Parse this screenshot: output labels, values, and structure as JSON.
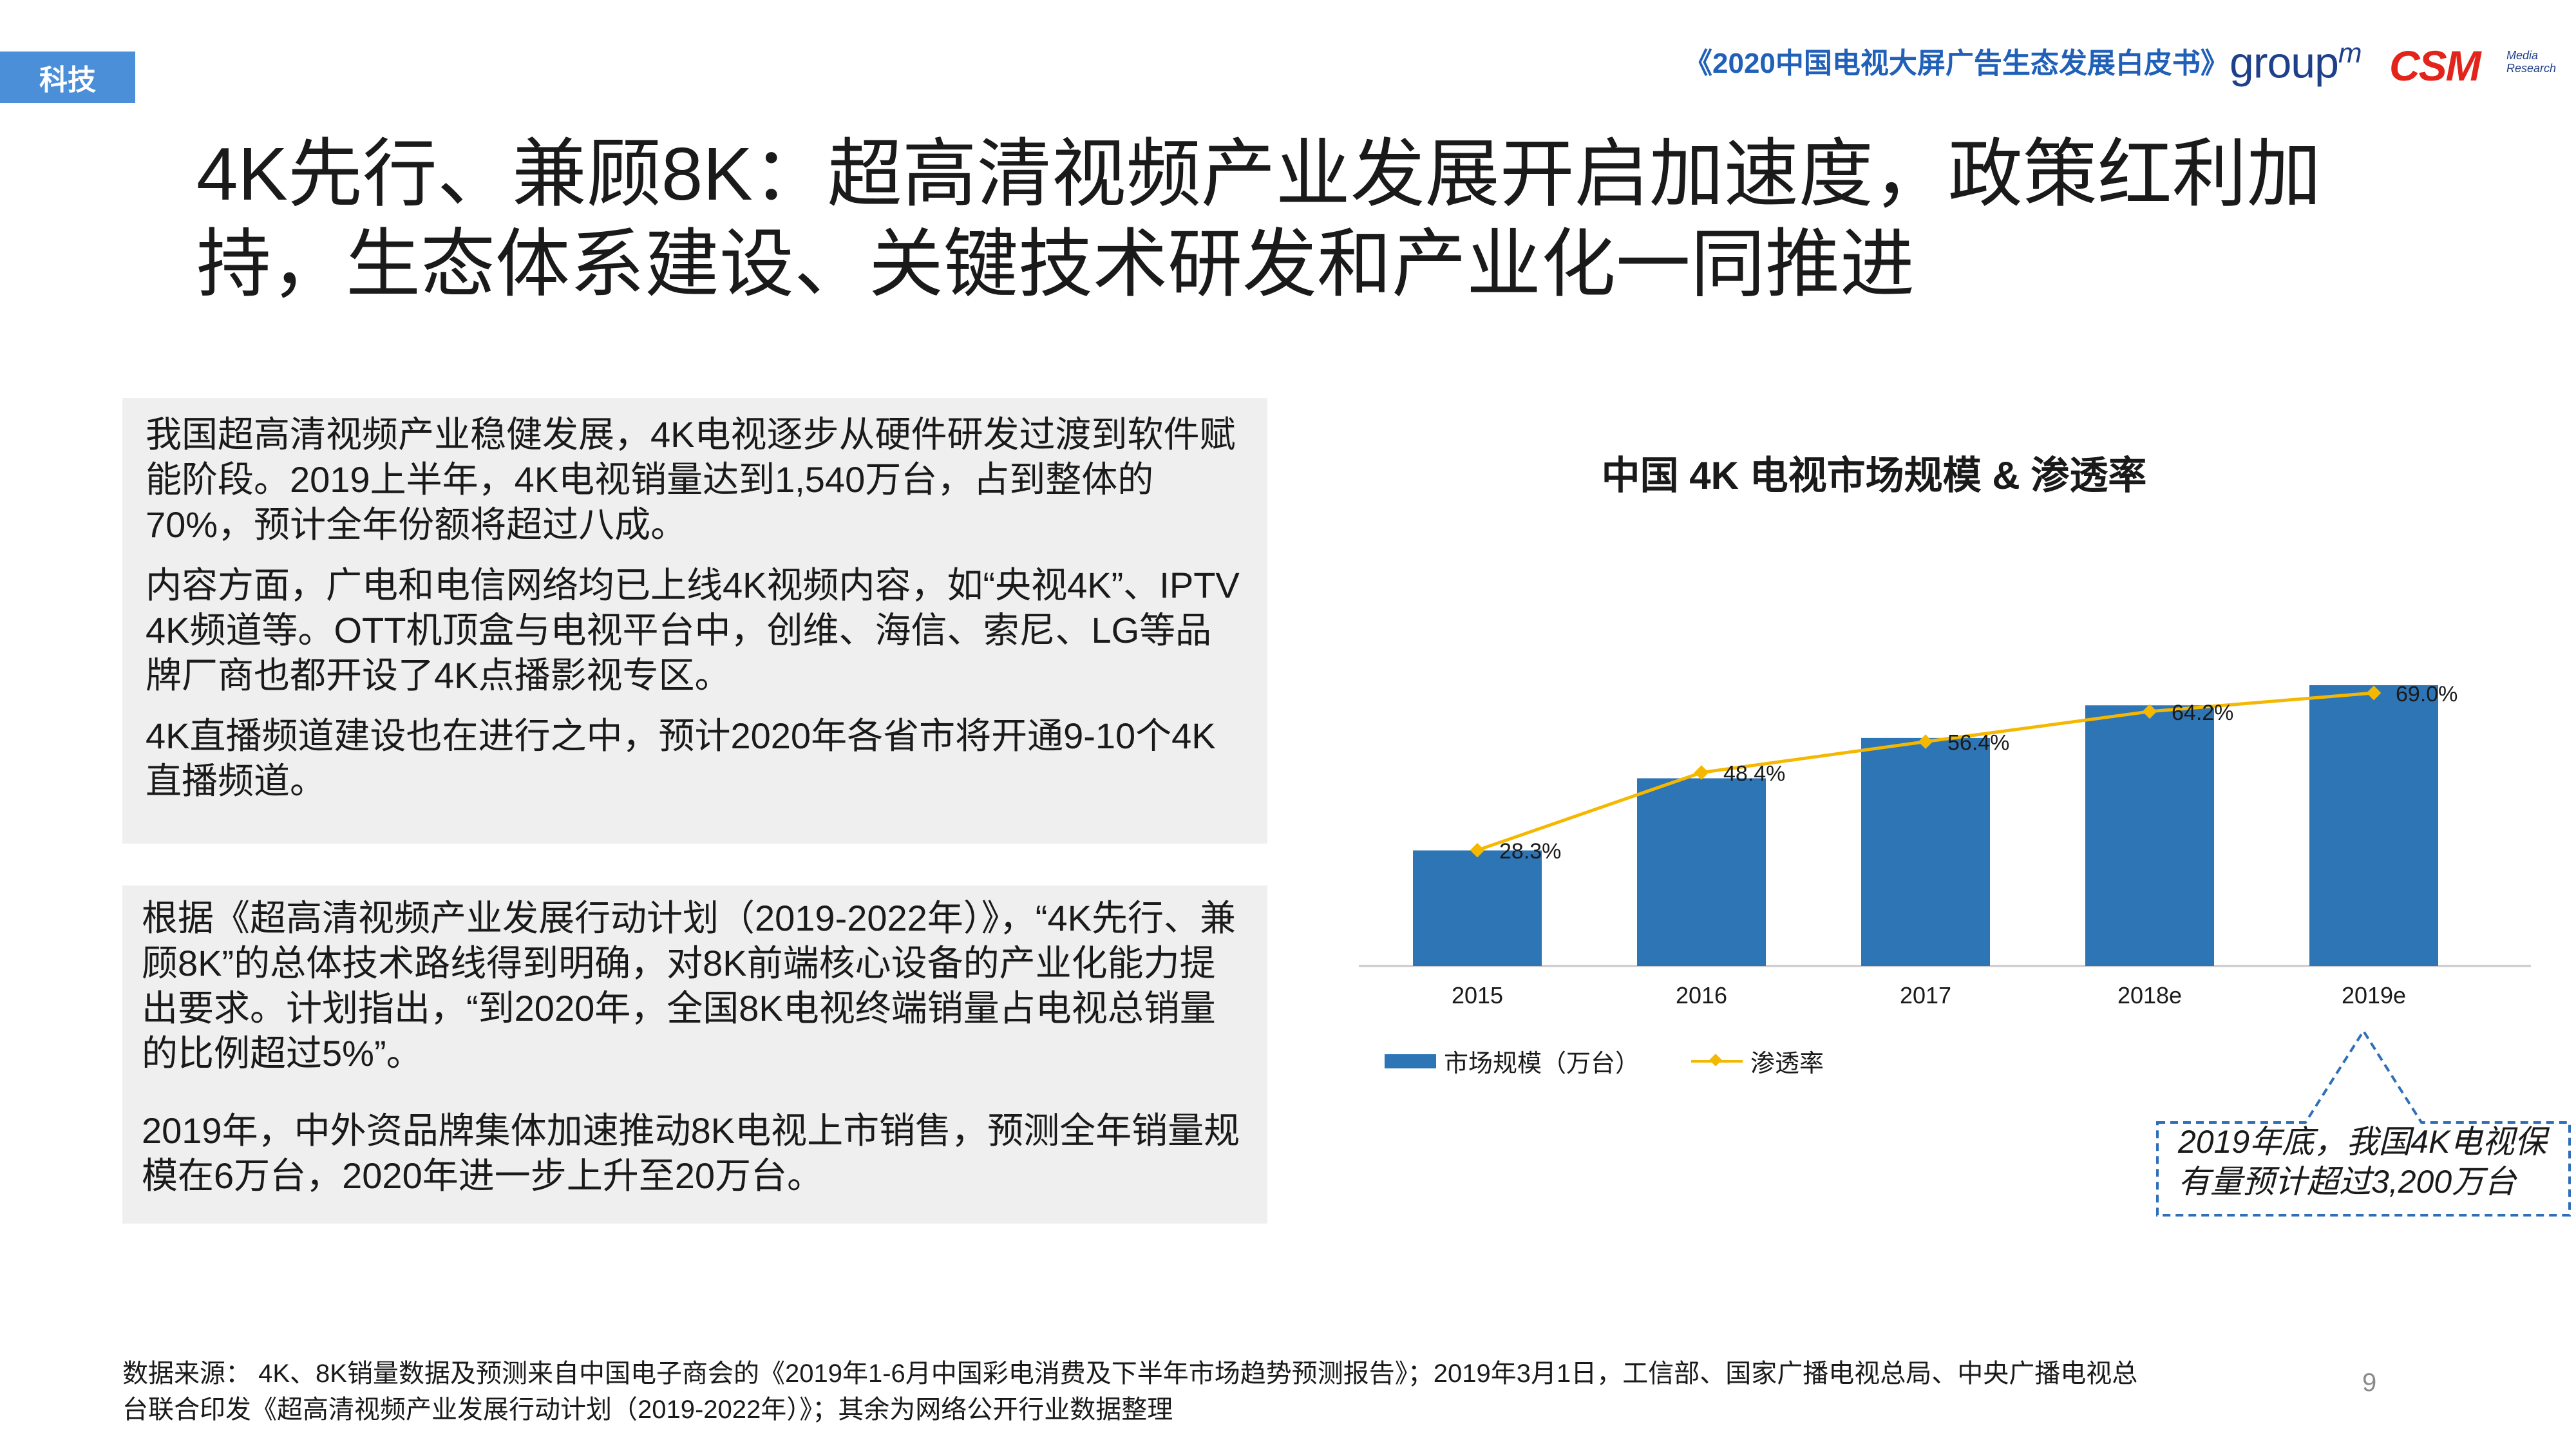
{
  "header": {
    "tag": "科技",
    "report_title": "《2020中国电视大屏广告生态发展白皮书》",
    "logo_groupm": "group",
    "logo_groupm_sup": "m",
    "logo_csm": "CSM",
    "logo_csm_sub1": "Media",
    "logo_csm_sub2": "Research"
  },
  "title": {
    "line1": "4K先行、兼顾8K：超高清视频产业发展开启加速度，政策红利加",
    "line2": "持，生态体系建设、关键技术研发和产业化一同推进"
  },
  "left_box1": {
    "p1": "我国超高清视频产业稳健发展，4K电视逐步从硬件研发过渡到软件赋能阶段。2019上半年，4K电视销量达到1,540万台，占到整体的70%，预计全年份额将超过八成。",
    "p2": "内容方面，广电和电信网络均已上线4K视频内容，如“央视4K”、IPTV 4K频道等。OTT机顶盒与电视平台中，创维、海信、索尼、LG等品牌厂商也都开设了4K点播影视专区。",
    "p3": "4K直播频道建设也在进行之中，预计2020年各省市将开通9-10个4K直播频道。"
  },
  "left_box2": {
    "p1": "根据《超高清视频产业发展行动计划（2019-2022年）》，“4K先行、兼顾8K”的总体技术路线得到明确，对8K前端核心设备的产业化能力提出要求。计划指出，“到2020年，全国8K电视终端销量占电视总销量的比例超过5%”。",
    "p2": "2019年，中外资品牌集体加速推动8K电视上市销售，预测全年销量规模在6万台，2020年进一步上升至20万台。"
  },
  "chart_data": {
    "type": "bar",
    "title": "中国 4K 电视市场规模 & 渗透率",
    "categories": [
      "2015",
      "2016",
      "2017",
      "2018e",
      "2019e"
    ],
    "series": [
      {
        "name": "市场规模（万台）",
        "type": "bar",
        "values": [
          1490,
          2420,
          2940,
          3360,
          3620
        ],
        "color": "#2e75b6"
      },
      {
        "name": "渗透率",
        "type": "line",
        "values": [
          28.3,
          48.4,
          56.4,
          64.2,
          69.0
        ],
        "labels": [
          "28.3%",
          "48.4%",
          "56.4%",
          "64.2%",
          "69.0%"
        ],
        "color": "#f5b800"
      }
    ],
    "legend": "bottom-left",
    "grid": false
  },
  "callout": {
    "line1": "2019年底，我国4K电视保",
    "line2": "有量预计超过3,200万台"
  },
  "footer": {
    "source_line1": "数据来源： 4K、8K销量数据及预测来自中国电子商会的《2019年1-6月中国彩电消费及下半年市场趋势预测报告》；2019年3月1日，工信部、国家广播电视总局、中央广播电视总",
    "source_line2": "台联合印发《超高清视频产业发展行动计划（2019-2022年）》；其余为网络公开行业数据整理",
    "page_number": "9"
  }
}
